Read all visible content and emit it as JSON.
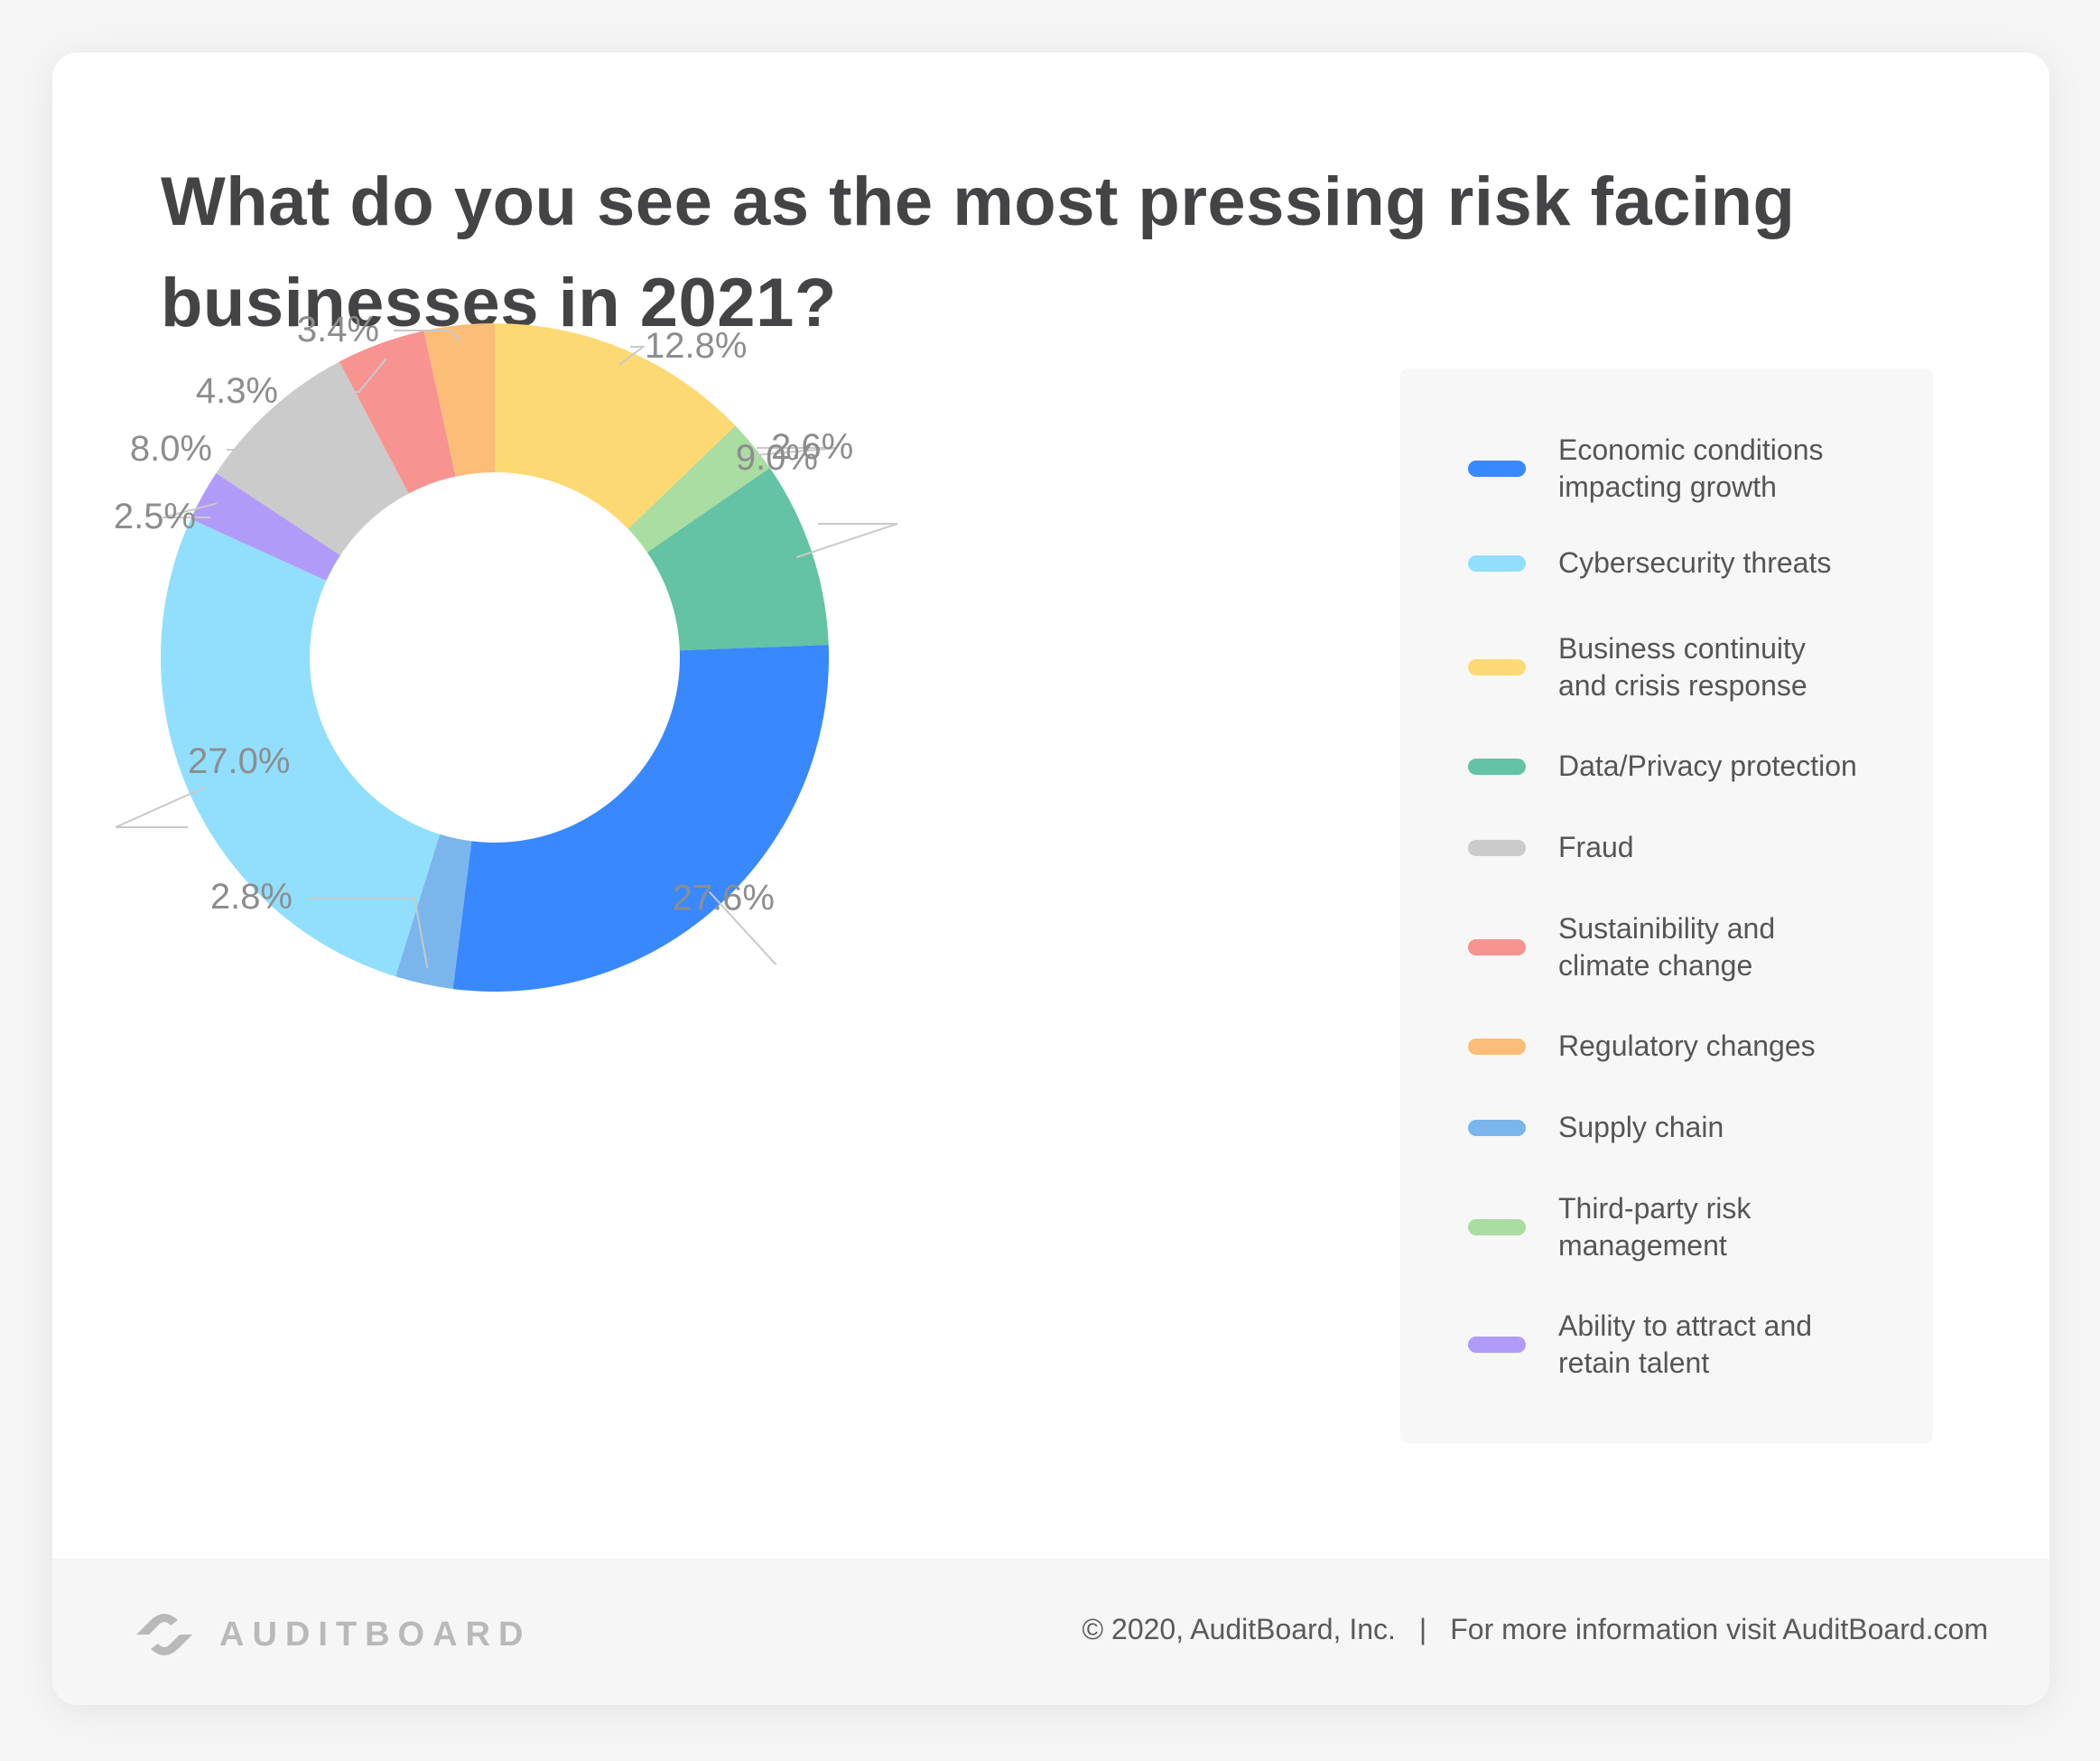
{
  "title": "What do you see as the most pressing risk facing businesses in 2021?",
  "chart_data": {
    "type": "pie",
    "variant": "donut",
    "title": "What do you see as the most pressing risk facing businesses in 2021?",
    "slices": [
      {
        "label": "Business continuity and crisis response",
        "value": 12.8,
        "label_text": "12.8%",
        "color": "#fdd974"
      },
      {
        "label": "Third-party risk management",
        "value": 2.6,
        "label_text": "2.6%",
        "color": "#aadda1"
      },
      {
        "label": "Data/Privacy protection",
        "value": 9.0,
        "label_text": "9.0%",
        "color": "#63c3a4"
      },
      {
        "label": "Economic conditions impacting growth",
        "value": 27.6,
        "label_text": "27.6%",
        "color": "#3988fd"
      },
      {
        "label": "Supply chain",
        "value": 2.8,
        "label_text": "2.8%",
        "color": "#7ab5ec"
      },
      {
        "label": "Cybersecurity threats",
        "value": 27.0,
        "label_text": "27.0%",
        "color": "#91dffd"
      },
      {
        "label": "Ability to attract and retain talent",
        "value": 2.5,
        "label_text": "2.5%",
        "color": "#b09cf8"
      },
      {
        "label": "Fraud",
        "value": 8.0,
        "label_text": "8.0%",
        "color": "#cbcbcb"
      },
      {
        "label": "Sustainibility and climate change",
        "value": 4.3,
        "label_text": "4.3%",
        "color": "#f79391"
      },
      {
        "label": "Regulatory changes",
        "value": 3.4,
        "label_text": "3.4%",
        "color": "#fbbd77"
      }
    ],
    "legend_position": "right"
  },
  "legend": [
    {
      "lines": [
        "Economic conditions",
        "impacting growth"
      ],
      "color": "#3988fd"
    },
    {
      "lines": [
        "Cybersecurity threats"
      ],
      "color": "#91dffd"
    },
    {
      "lines": [
        "Business continuity",
        "and crisis response"
      ],
      "color": "#fdd974"
    },
    {
      "lines": [
        "Data/Privacy protection"
      ],
      "color": "#63c3a4"
    },
    {
      "lines": [
        "Fraud"
      ],
      "color": "#cbcbcb"
    },
    {
      "lines": [
        "Sustainibility and",
        "climate change"
      ],
      "color": "#f79391"
    },
    {
      "lines": [
        "Regulatory changes"
      ],
      "color": "#fbbd77"
    },
    {
      "lines": [
        "Supply chain"
      ],
      "color": "#7ab5ec"
    },
    {
      "lines": [
        "Third-party risk",
        "management"
      ],
      "color": "#aadda1"
    },
    {
      "lines": [
        "Ability to attract and",
        "retain talent"
      ],
      "color": "#b09cf8"
    }
  ],
  "footer": {
    "brand": "AUDITBOARD",
    "copyright": "© 2020, AuditBoard, Inc.",
    "separator": "|",
    "info": "For more information visit AuditBoard.com"
  }
}
